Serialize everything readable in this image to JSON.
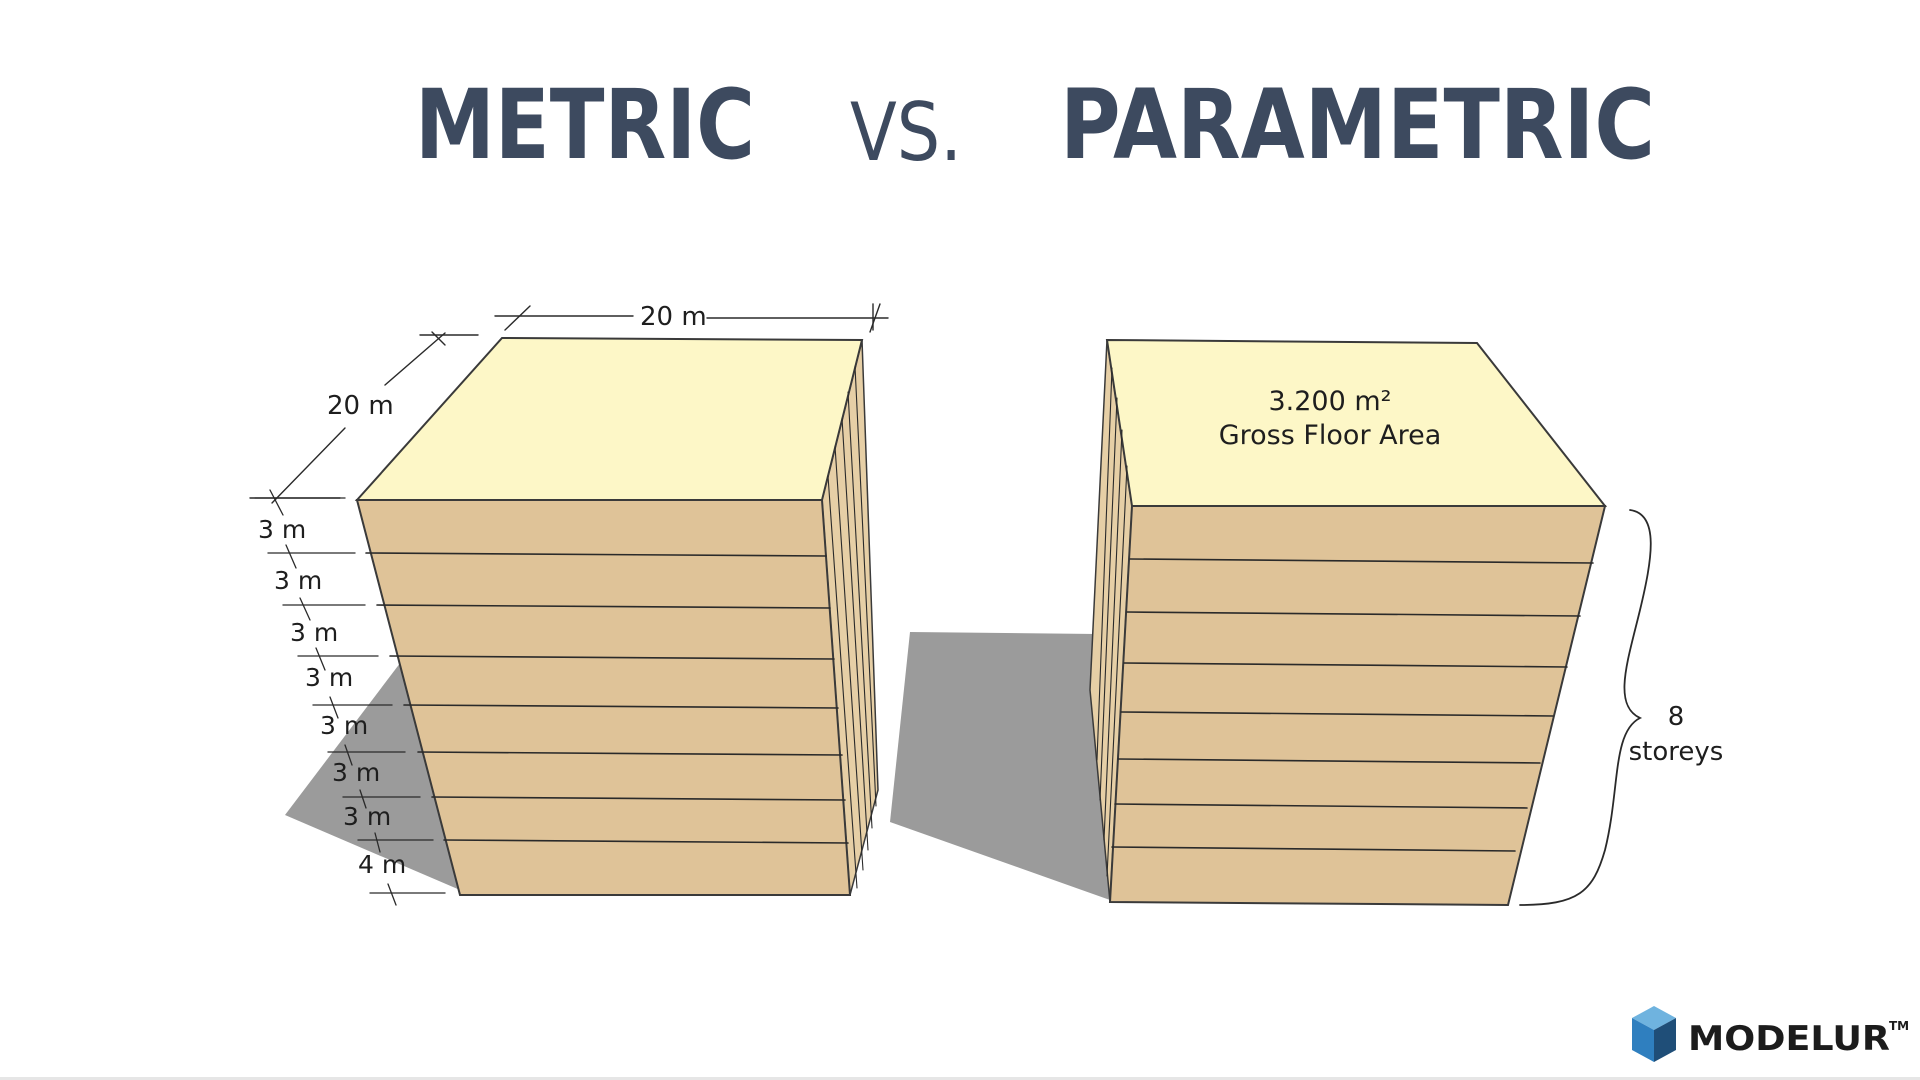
{
  "title": {
    "left": "METRIC",
    "vs": "VS.",
    "right": "PARAMETRIC"
  },
  "metric_building": {
    "width_label": "20 m",
    "depth_label": "20 m",
    "floor_labels": [
      "3 m",
      "3 m",
      "3 m",
      "3 m",
      "3 m",
      "3 m",
      "3 m",
      "4 m"
    ]
  },
  "parametric_building": {
    "area_value": "3.200 m²",
    "area_label": "Gross Floor Area",
    "storeys_count": "8",
    "storeys_label": "storeys"
  },
  "logo": {
    "text": "MODELUR",
    "trademark": "TM"
  },
  "colors": {
    "title": "#3d4a5f",
    "roof": "#fdf7c7",
    "facade": "#dfc398",
    "side": "#e9d3ab",
    "shadow": "#9b9b9b",
    "logo_cube_top": "#6fb3df",
    "logo_cube_left": "#2f7fbf",
    "logo_cube_right": "#1f4e78"
  }
}
